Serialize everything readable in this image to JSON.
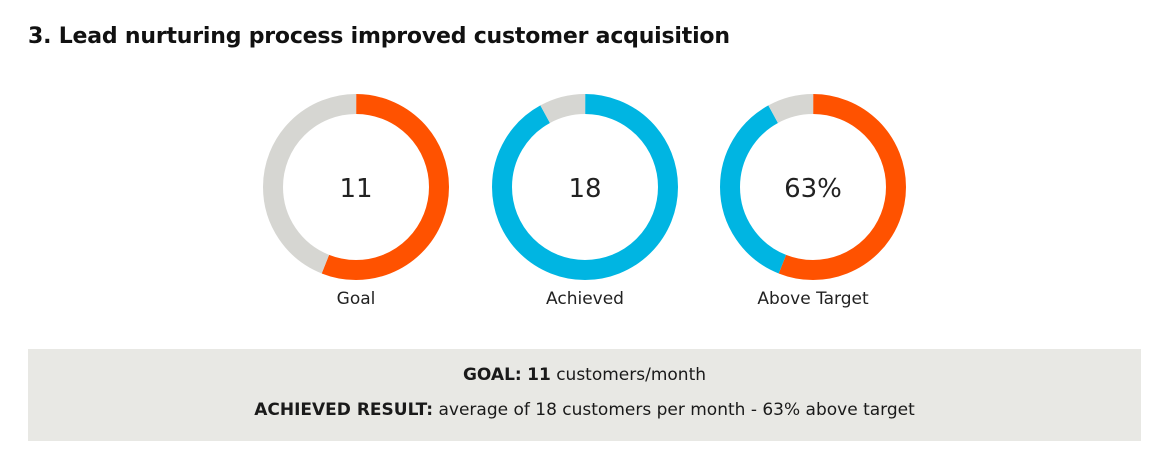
{
  "title": "3. Lead nurturing process improved customer acquisition",
  "colors": {
    "orange": "#ff5200",
    "blue": "#00b5e2",
    "gray": "#d6d6d2",
    "summary_bg": "#e8e8e4"
  },
  "chart_data": {
    "type": "donut",
    "title": "3. Lead nurturing process improved customer acquisition",
    "charts": [
      {
        "label": "Goal",
        "value_text": "11",
        "value": 11,
        "fill_fraction": 0.56,
        "fill_color": "orange",
        "rest_color": "gray"
      },
      {
        "label": "Achieved",
        "value_text": "18",
        "value": 18,
        "fill_fraction": 0.92,
        "fill_color": "blue",
        "rest_color": "gray"
      },
      {
        "label": "Above Target",
        "value_text": "63%",
        "value": 63,
        "segments": [
          {
            "color": "orange",
            "fraction": 0.56
          },
          {
            "color": "blue",
            "fraction": 0.36
          },
          {
            "color": "gray",
            "fraction": 0.08
          }
        ]
      }
    ]
  },
  "summary": {
    "goal_label": "GOAL:",
    "goal_value": "11",
    "goal_unit": "customers/month",
    "achieved_label": "ACHIEVED RESULT:",
    "achieved_text": "average of 18 customers per month - 63% above target"
  }
}
